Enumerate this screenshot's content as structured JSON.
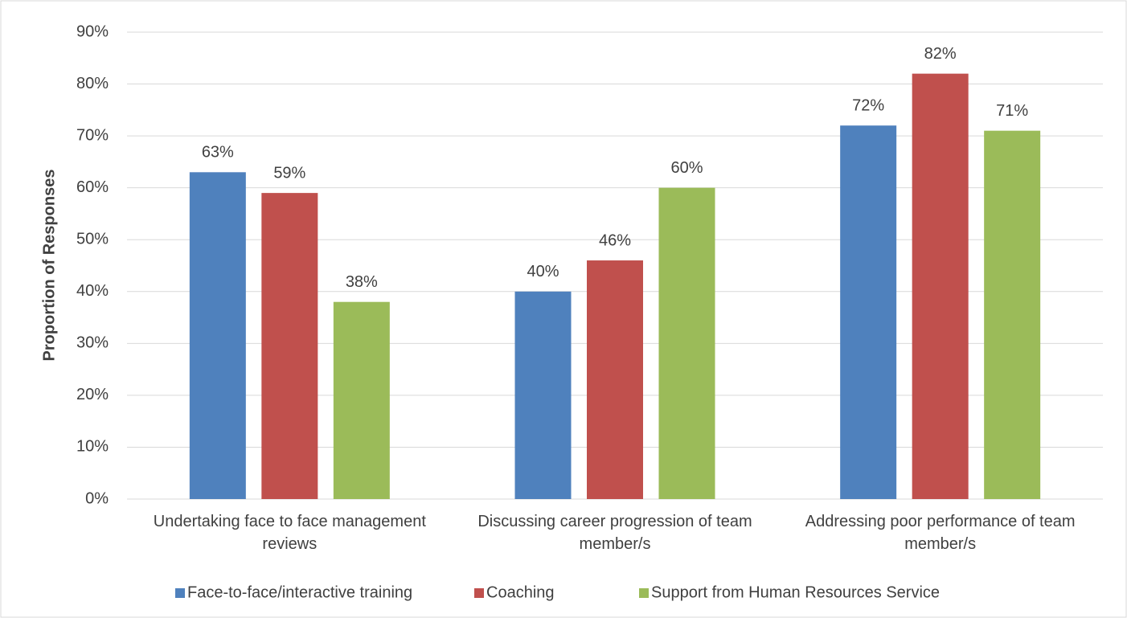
{
  "chart_data": {
    "type": "bar",
    "y_label": "Proportion of Responses",
    "categories": [
      "Undertaking face to face management reviews",
      "Discussing career progression of team member/s",
      "Addressing poor performance of team member/s"
    ],
    "series": [
      {
        "name": "Face-to-face/interactive training",
        "color": "#4f81bd",
        "values": [
          63,
          40,
          72
        ],
        "value_labels": [
          "63%",
          "40%",
          "72%"
        ]
      },
      {
        "name": "Coaching",
        "color": "#c0504d",
        "values": [
          59,
          46,
          82
        ],
        "value_labels": [
          "59%",
          "46%",
          "82%"
        ]
      },
      {
        "name": "Support from Human Resources Service",
        "color": "#9bbb59",
        "values": [
          38,
          60,
          71
        ],
        "value_labels": [
          "38%",
          "60%",
          "71%"
        ]
      }
    ],
    "ylim": [
      0,
      90
    ],
    "yticks": [
      {
        "value": 0,
        "label": "0%"
      },
      {
        "value": 10,
        "label": "10%"
      },
      {
        "value": 20,
        "label": "20%"
      },
      {
        "value": 30,
        "label": "30%"
      },
      {
        "value": 40,
        "label": "40%"
      },
      {
        "value": 50,
        "label": "50%"
      },
      {
        "value": 60,
        "label": "60%"
      },
      {
        "value": 70,
        "label": "70%"
      },
      {
        "value": 80,
        "label": "80%"
      },
      {
        "value": 90,
        "label": "90%"
      }
    ],
    "grid": true,
    "legend": "bottom"
  }
}
